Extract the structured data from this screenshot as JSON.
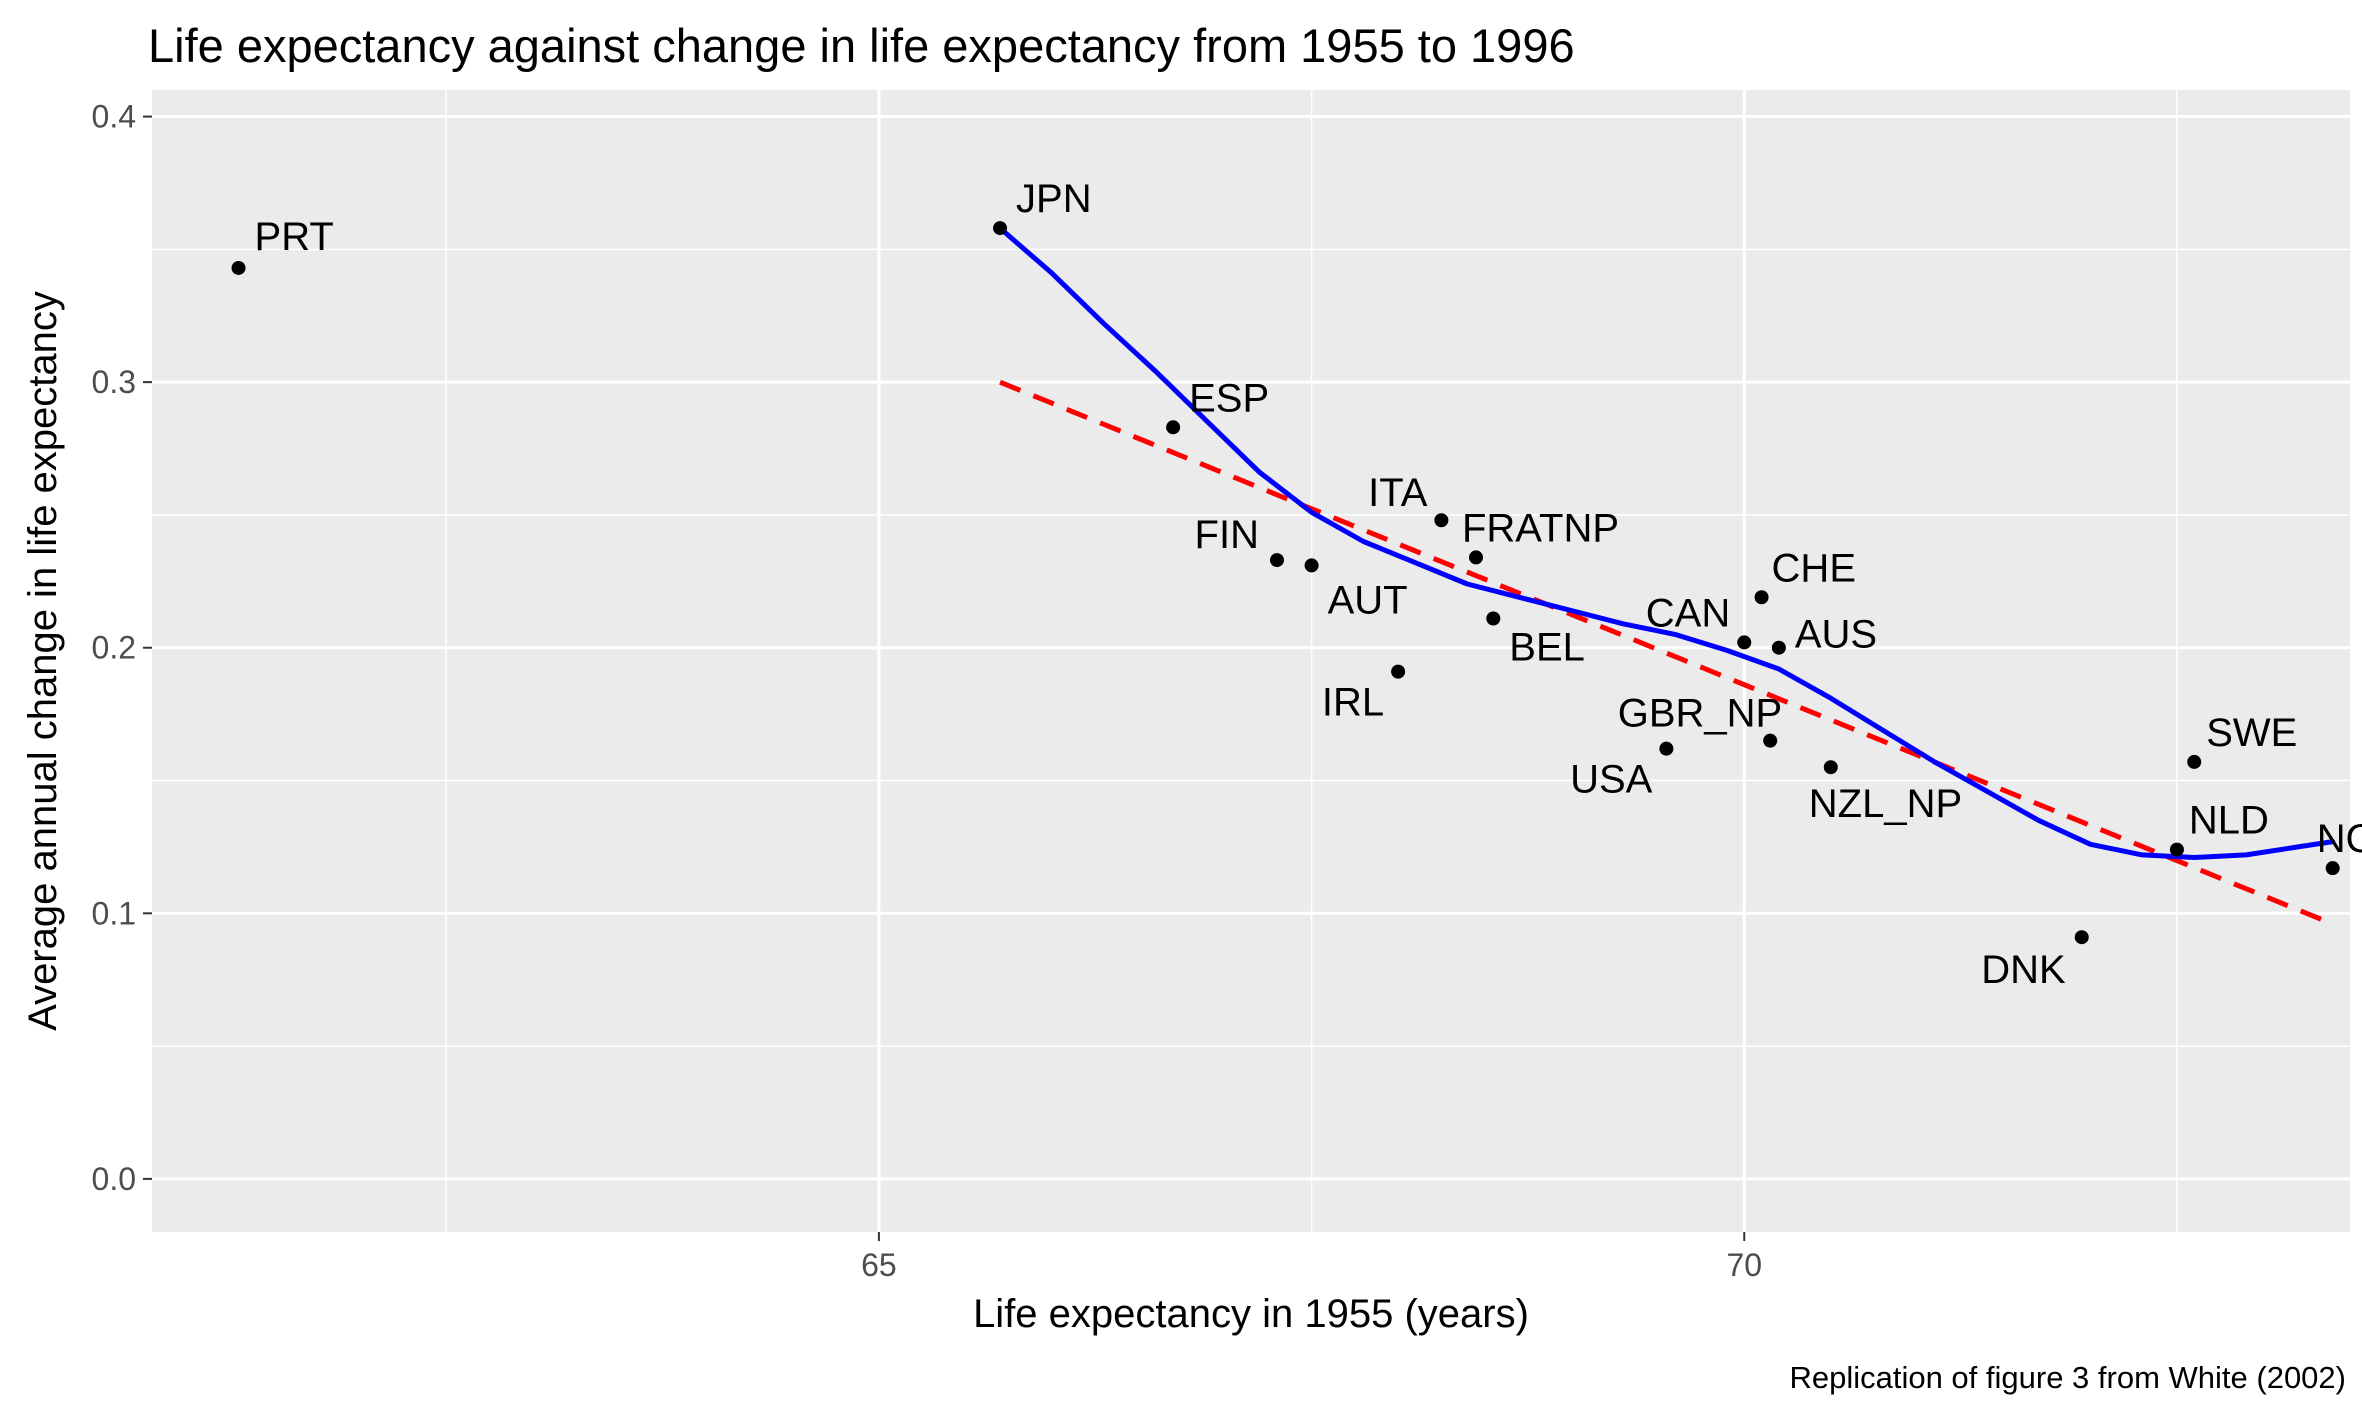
{
  "chart_data": {
    "type": "scatter",
    "title": "Life expectancy against change in life expectancy from 1955 to 1996",
    "xlabel": "Life expectancy in 1955 (years)",
    "ylabel": "Average annual change in life expectancy",
    "caption": "Replication of figure 3 from White (2002)",
    "xlim": [
      60.8,
      73.5
    ],
    "ylim": [
      -0.02,
      0.41
    ],
    "x_ticks": [
      65,
      70
    ],
    "x_tick_labels": [
      "65",
      "70"
    ],
    "y_ticks": [
      0.0,
      0.1,
      0.2,
      0.3,
      0.4
    ],
    "y_tick_labels": [
      "0.0",
      "0.1",
      "0.2",
      "0.3",
      "0.4"
    ],
    "x_minor_ticks": [
      62.5,
      67.5,
      72.5
    ],
    "y_minor_ticks": [
      0.05,
      0.15,
      0.25,
      0.35
    ],
    "grid": true,
    "colors": {
      "panel": "#ebebeb",
      "grid": "#ffffff",
      "points": "#000000",
      "smooth": "#0000ff",
      "linear_fit": "#ff0000"
    },
    "points": [
      {
        "label": "PRT",
        "x": 61.3,
        "y": 0.343
      },
      {
        "label": "JPN",
        "x": 65.7,
        "y": 0.358
      },
      {
        "label": "ESP",
        "x": 66.7,
        "y": 0.283
      },
      {
        "label": "FIN",
        "x": 67.3,
        "y": 0.233
      },
      {
        "label": "AUT",
        "x": 67.5,
        "y": 0.231
      },
      {
        "label": "ITA",
        "x": 68.25,
        "y": 0.248
      },
      {
        "label": "FRATNP",
        "x": 68.45,
        "y": 0.234
      },
      {
        "label": "BEL",
        "x": 68.55,
        "y": 0.211
      },
      {
        "label": "IRL",
        "x": 68.0,
        "y": 0.191
      },
      {
        "label": "CAN",
        "x": 70.0,
        "y": 0.202
      },
      {
        "label": "CHE",
        "x": 70.1,
        "y": 0.219
      },
      {
        "label": "AUS",
        "x": 70.2,
        "y": 0.2
      },
      {
        "label": "USA",
        "x": 69.55,
        "y": 0.162
      },
      {
        "label": "GBR_NP",
        "x": 70.15,
        "y": 0.165
      },
      {
        "label": "NZL_NP",
        "x": 70.5,
        "y": 0.155
      },
      {
        "label": "DNK",
        "x": 71.95,
        "y": 0.091
      },
      {
        "label": "SWE",
        "x": 72.6,
        "y": 0.157
      },
      {
        "label": "NLD",
        "x": 72.5,
        "y": 0.124
      },
      {
        "label": "NOR",
        "x": 73.4,
        "y": 0.117
      }
    ],
    "linear_fit": {
      "x": [
        65.7,
        73.4
      ],
      "y": [
        0.3,
        0.096
      ]
    },
    "smooth": {
      "x": [
        65.7,
        66.0,
        66.3,
        66.6,
        66.9,
        67.2,
        67.5,
        67.8,
        68.1,
        68.4,
        68.7,
        69.0,
        69.3,
        69.6,
        69.9,
        70.2,
        70.5,
        70.8,
        71.1,
        71.4,
        71.7,
        72.0,
        72.3,
        72.6,
        72.9,
        73.2,
        73.4
      ],
      "y": [
        0.358,
        0.341,
        0.322,
        0.304,
        0.285,
        0.266,
        0.251,
        0.24,
        0.232,
        0.224,
        0.219,
        0.214,
        0.209,
        0.205,
        0.199,
        0.192,
        0.181,
        0.169,
        0.157,
        0.146,
        0.135,
        0.126,
        0.122,
        0.121,
        0.122,
        0.125,
        0.127
      ]
    }
  }
}
